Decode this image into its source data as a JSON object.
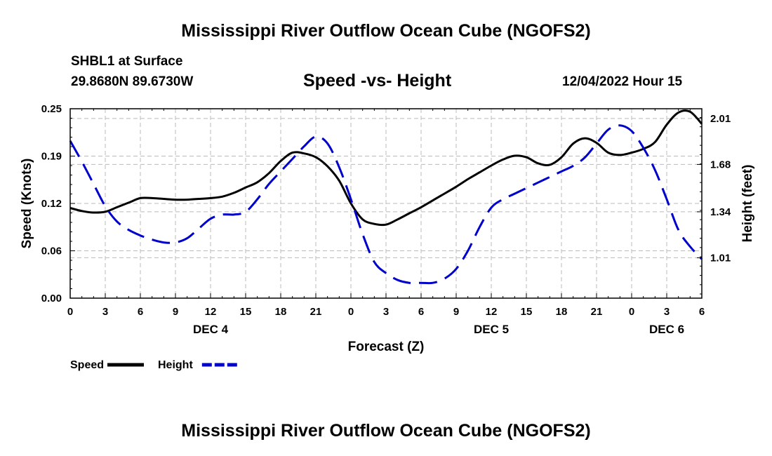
{
  "header": {
    "title": "Mississippi River Outflow Ocean Cube (NGOFS2)",
    "station": "SHBL1 at Surface",
    "coords": "29.8680N  89.6730W",
    "subtitle": "Speed -vs- Height",
    "datetime": "12/04/2022 Hour 15"
  },
  "footer": {
    "title": "Mississippi River Outflow Ocean Cube (NGOFS2)"
  },
  "chart_data": {
    "type": "line",
    "title": "Speed -vs- Height",
    "xlabel": "Forecast (Z)",
    "ylabel": "Speed (Knots)",
    "y2label": "Height (feet)",
    "x_range": [
      0,
      54
    ],
    "x_tick_labels": [
      "0",
      "3",
      "6",
      "9",
      "12",
      "15",
      "18",
      "21",
      "0",
      "3",
      "6",
      "9",
      "12",
      "15",
      "18",
      "21",
      "0",
      "3",
      "6"
    ],
    "date_labels": [
      {
        "hour": 12,
        "label": "DEC 4"
      },
      {
        "hour": 36,
        "label": "DEC 5"
      },
      {
        "hour": 51,
        "label": "DEC 6"
      }
    ],
    "ylim": [
      0,
      0.25
    ],
    "y_ticks": [
      "0.00",
      "0.06",
      "0.12",
      "0.19",
      "0.25"
    ],
    "y2lim": [
      0.72,
      2.08
    ],
    "y2_ticks": [
      "1.01",
      "1.34",
      "1.68",
      "2.01"
    ],
    "grid": true,
    "legend_position": "bottom-left",
    "series": [
      {
        "name": "Speed",
        "axis": "left",
        "color": "#000000",
        "style": "solid",
        "x": [
          0,
          1,
          2,
          3,
          4,
          5,
          6,
          7,
          8,
          9,
          10,
          11,
          12,
          13,
          14,
          15,
          16,
          17,
          18,
          19,
          20,
          21,
          22,
          23,
          24,
          25,
          26,
          27,
          28,
          29,
          30,
          31,
          32,
          33,
          34,
          35,
          36,
          37,
          38,
          39,
          40,
          41,
          42,
          43,
          44,
          45,
          46,
          47,
          48,
          49,
          50,
          51,
          52,
          53,
          54
        ],
        "values": [
          0.119,
          0.115,
          0.113,
          0.114,
          0.12,
          0.126,
          0.132,
          0.132,
          0.131,
          0.13,
          0.13,
          0.131,
          0.132,
          0.134,
          0.139,
          0.146,
          0.153,
          0.165,
          0.181,
          0.192,
          0.191,
          0.186,
          0.174,
          0.155,
          0.125,
          0.104,
          0.098,
          0.097,
          0.104,
          0.112,
          0.12,
          0.129,
          0.138,
          0.147,
          0.157,
          0.166,
          0.175,
          0.183,
          0.188,
          0.186,
          0.178,
          0.176,
          0.186,
          0.204,
          0.211,
          0.205,
          0.192,
          0.189,
          0.192,
          0.197,
          0.206,
          0.229,
          0.245,
          0.246,
          0.23
        ]
      },
      {
        "name": "Height",
        "axis": "right",
        "color": "#0000cc",
        "style": "dashed",
        "x": [
          0,
          1,
          2,
          3,
          4,
          5,
          6,
          7,
          8,
          9,
          10,
          11,
          12,
          13,
          14,
          15,
          16,
          17,
          18,
          19,
          20,
          21,
          22,
          23,
          24,
          25,
          26,
          27,
          28,
          29,
          30,
          31,
          32,
          33,
          34,
          35,
          36,
          37,
          38,
          39,
          40,
          41,
          42,
          43,
          44,
          45,
          46,
          47,
          48,
          49,
          50,
          51,
          52,
          53,
          54
        ],
        "values": [
          1.85,
          1.7,
          1.54,
          1.38,
          1.27,
          1.21,
          1.17,
          1.14,
          1.12,
          1.12,
          1.15,
          1.22,
          1.29,
          1.32,
          1.32,
          1.34,
          1.43,
          1.54,
          1.63,
          1.72,
          1.81,
          1.88,
          1.83,
          1.66,
          1.43,
          1.18,
          0.98,
          0.9,
          0.85,
          0.83,
          0.83,
          0.83,
          0.86,
          0.93,
          1.06,
          1.23,
          1.37,
          1.43,
          1.47,
          1.51,
          1.55,
          1.59,
          1.63,
          1.67,
          1.73,
          1.83,
          1.93,
          1.96,
          1.92,
          1.8,
          1.64,
          1.43,
          1.21,
          1.09,
          1.0
        ]
      }
    ]
  }
}
